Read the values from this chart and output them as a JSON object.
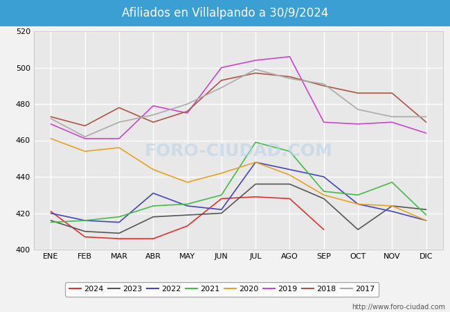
{
  "title": "Afiliados en Villalpando a 30/9/2024",
  "title_bg_color": "#3c9fd4",
  "title_text_color": "white",
  "ylim": [
    400,
    520
  ],
  "yticks": [
    400,
    420,
    440,
    460,
    480,
    500,
    520
  ],
  "months": [
    "ENE",
    "FEB",
    "MAR",
    "ABR",
    "MAY",
    "JUN",
    "JUL",
    "AGO",
    "SEP",
    "OCT",
    "NOV",
    "DIC"
  ],
  "watermark": "FORO-CIUDAD.COM",
  "url": "http://www.foro-ciudad.com",
  "series": {
    "2024": {
      "color": "#e03030",
      "data": [
        421,
        407,
        406,
        406,
        413,
        428,
        429,
        428,
        411,
        null,
        null,
        null
      ]
    },
    "2023": {
      "color": "#555555",
      "data": [
        416,
        410,
        409,
        418,
        419,
        420,
        436,
        436,
        428,
        411,
        424,
        422
      ]
    },
    "2022": {
      "color": "#4444bb",
      "data": [
        420,
        416,
        415,
        431,
        424,
        422,
        448,
        444,
        440,
        425,
        421,
        416
      ]
    },
    "2021": {
      "color": "#44bb44",
      "data": [
        415,
        416,
        418,
        424,
        425,
        430,
        459,
        454,
        432,
        430,
        437,
        419
      ]
    },
    "2020": {
      "color": "#e8a020",
      "data": [
        461,
        454,
        456,
        444,
        437,
        442,
        448,
        441,
        430,
        425,
        424,
        416
      ]
    },
    "2019": {
      "color": "#cc44cc",
      "data": [
        469,
        461,
        461,
        479,
        475,
        500,
        504,
        506,
        470,
        469,
        470,
        464
      ]
    },
    "2018": {
      "color": "#aa5544",
      "data": [
        473,
        468,
        478,
        470,
        476,
        493,
        497,
        495,
        490,
        486,
        486,
        470
      ]
    },
    "2017": {
      "color": "#aaaaaa",
      "data": [
        472,
        462,
        470,
        474,
        480,
        489,
        499,
        494,
        491,
        477,
        473,
        473
      ]
    }
  },
  "legend_order": [
    "2024",
    "2023",
    "2022",
    "2021",
    "2020",
    "2019",
    "2018",
    "2017"
  ],
  "background_color": "#f2f2f2",
  "plot_bg_color": "#e8e8e8",
  "grid_color": "white",
  "figsize": [
    6.5,
    4.5
  ],
  "dpi": 100
}
